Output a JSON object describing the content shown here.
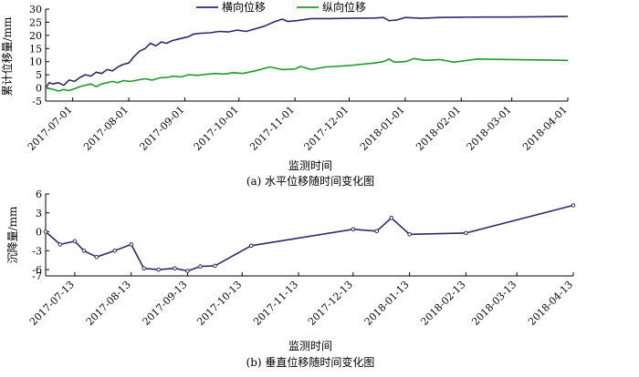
{
  "chart_data": [
    {
      "type": "line",
      "caption": "(a) 水平位移随时间变化图",
      "xlabel": "监测时间",
      "ylabel": "累计位移量/mm",
      "ylim": [
        -5,
        30
      ],
      "yticks": [
        -5,
        0,
        5,
        10,
        15,
        20,
        25,
        30
      ],
      "x_range": [
        "2017-06-16",
        "2018-04-01"
      ],
      "xticks": [
        "2017-07-01",
        "2017-08-01",
        "2017-09-01",
        "2017-10-01",
        "2017-11-01",
        "2017-12-01",
        "2018-01-01",
        "2018-02-01",
        "2018-03-01",
        "2018-04-01"
      ],
      "legend_position": "top-center",
      "grid": false,
      "series": [
        {
          "name": "横向位移",
          "color": "#2e2a6e",
          "points": [
            [
              "2017-06-16",
              0
            ],
            [
              "2017-06-18",
              2
            ],
            [
              "2017-06-20",
              1.5
            ],
            [
              "2017-06-23",
              2
            ],
            [
              "2017-06-26",
              1
            ],
            [
              "2017-06-29",
              3
            ],
            [
              "2017-07-02",
              2.5
            ],
            [
              "2017-07-05",
              4
            ],
            [
              "2017-07-08",
              5
            ],
            [
              "2017-07-11",
              4.5
            ],
            [
              "2017-07-14",
              6
            ],
            [
              "2017-07-17",
              5.5
            ],
            [
              "2017-07-20",
              7
            ],
            [
              "2017-07-23",
              6.5
            ],
            [
              "2017-07-26",
              8
            ],
            [
              "2017-07-29",
              9
            ],
            [
              "2017-08-01",
              9.5
            ],
            [
              "2017-08-04",
              12
            ],
            [
              "2017-08-07",
              14
            ],
            [
              "2017-08-10",
              15
            ],
            [
              "2017-08-13",
              17
            ],
            [
              "2017-08-16",
              16
            ],
            [
              "2017-08-19",
              17.5
            ],
            [
              "2017-08-22",
              17
            ],
            [
              "2017-08-25",
              18
            ],
            [
              "2017-08-28",
              18.5
            ],
            [
              "2017-08-31",
              19
            ],
            [
              "2017-09-03",
              19.5
            ],
            [
              "2017-09-06",
              20.5
            ],
            [
              "2017-09-10",
              20.8
            ],
            [
              "2017-09-15",
              21
            ],
            [
              "2017-09-20",
              21.5
            ],
            [
              "2017-09-25",
              21.3
            ],
            [
              "2017-09-30",
              22
            ],
            [
              "2017-10-05",
              21.5
            ],
            [
              "2017-10-10",
              22.5
            ],
            [
              "2017-10-15",
              23.5
            ],
            [
              "2017-10-20",
              25
            ],
            [
              "2017-10-25",
              26.2
            ],
            [
              "2017-10-28",
              25.3
            ],
            [
              "2017-11-02",
              25.6
            ],
            [
              "2017-11-10",
              26.4
            ],
            [
              "2017-11-20",
              26.4
            ],
            [
              "2017-12-01",
              26.5
            ],
            [
              "2017-12-15",
              26.6
            ],
            [
              "2017-12-20",
              26.8
            ],
            [
              "2017-12-23",
              25.6
            ],
            [
              "2017-12-27",
              25.8
            ],
            [
              "2018-01-01",
              26.8
            ],
            [
              "2018-01-10",
              26.5
            ],
            [
              "2018-01-20",
              26.8
            ],
            [
              "2018-02-01",
              26.9
            ],
            [
              "2018-02-15",
              27
            ],
            [
              "2018-03-01",
              27
            ],
            [
              "2018-04-01",
              27.2
            ]
          ]
        },
        {
          "name": "纵向位移",
          "color": "#1e9a2a",
          "points": [
            [
              "2017-06-16",
              0
            ],
            [
              "2017-06-20",
              -0.5
            ],
            [
              "2017-06-23",
              -1.2
            ],
            [
              "2017-06-26",
              -0.6
            ],
            [
              "2017-06-29",
              -1
            ],
            [
              "2017-07-02",
              -0.3
            ],
            [
              "2017-07-05",
              0.5
            ],
            [
              "2017-07-08",
              1
            ],
            [
              "2017-07-11",
              1.5
            ],
            [
              "2017-07-14",
              0.5
            ],
            [
              "2017-07-17",
              1.5
            ],
            [
              "2017-07-20",
              2
            ],
            [
              "2017-07-23",
              2.5
            ],
            [
              "2017-07-26",
              2
            ],
            [
              "2017-07-29",
              2.8
            ],
            [
              "2017-08-02",
              2.5
            ],
            [
              "2017-08-06",
              3
            ],
            [
              "2017-08-10",
              3.5
            ],
            [
              "2017-08-14",
              3
            ],
            [
              "2017-08-18",
              3.8
            ],
            [
              "2017-08-22",
              4
            ],
            [
              "2017-08-26",
              4.5
            ],
            [
              "2017-08-30",
              4.2
            ],
            [
              "2017-09-03",
              5
            ],
            [
              "2017-09-08",
              4.8
            ],
            [
              "2017-09-13",
              5.2
            ],
            [
              "2017-09-18",
              5.5
            ],
            [
              "2017-09-23",
              5.3
            ],
            [
              "2017-09-28",
              5.8
            ],
            [
              "2017-10-03",
              5.5
            ],
            [
              "2017-10-10",
              6.5
            ],
            [
              "2017-10-18",
              8
            ],
            [
              "2017-10-25",
              7
            ],
            [
              "2017-11-01",
              7.2
            ],
            [
              "2017-11-04",
              8.2
            ],
            [
              "2017-11-10",
              7
            ],
            [
              "2017-11-18",
              8
            ],
            [
              "2017-12-01",
              8.5
            ],
            [
              "2017-12-15",
              9.5
            ],
            [
              "2017-12-20",
              10
            ],
            [
              "2017-12-23",
              11
            ],
            [
              "2017-12-26",
              9.8
            ],
            [
              "2018-01-01",
              10
            ],
            [
              "2018-01-06",
              11.2
            ],
            [
              "2018-01-12",
              10.5
            ],
            [
              "2018-01-20",
              10.8
            ],
            [
              "2018-01-28",
              9.8
            ],
            [
              "2018-02-10",
              11
            ],
            [
              "2018-03-01",
              10.8
            ],
            [
              "2018-04-01",
              10.5
            ]
          ]
        }
      ]
    },
    {
      "type": "line",
      "caption": "(b) 垂直位移随时间变化图",
      "xlabel": "监测时间",
      "ylabel": "沉降量/mm",
      "ylim": [
        -7,
        6
      ],
      "yticks": [
        6,
        3,
        0,
        -3,
        -6,
        -7
      ],
      "x_range": [
        "2017-06-27",
        "2018-04-13"
      ],
      "xticks": [
        "2017-07-13",
        "2017-08-13",
        "2017-09-13",
        "2017-10-13",
        "2017-11-13",
        "2017-12-13",
        "2018-01-13",
        "2018-02-13",
        "2018-03-13",
        "2018-04-13"
      ],
      "grid": false,
      "series": [
        {
          "name": "",
          "color": "#2e2a6e",
          "points": [
            [
              "2017-06-27",
              0
            ],
            [
              "2017-07-05",
              -2
            ],
            [
              "2017-07-13",
              -1.5
            ],
            [
              "2017-07-18",
              -3
            ],
            [
              "2017-07-25",
              -4
            ],
            [
              "2017-08-04",
              -3
            ],
            [
              "2017-08-13",
              -2
            ],
            [
              "2017-08-20",
              -5.8
            ],
            [
              "2017-08-28",
              -6
            ],
            [
              "2017-09-06",
              -5.8
            ],
            [
              "2017-09-13",
              -6.2
            ],
            [
              "2017-09-20",
              -5.5
            ],
            [
              "2017-09-28",
              -5.4
            ],
            [
              "2017-10-18",
              -2.2
            ],
            [
              "2017-12-13",
              0.4
            ],
            [
              "2017-12-26",
              0.1
            ],
            [
              "2018-01-03",
              2.2
            ],
            [
              "2018-01-13",
              -0.4
            ],
            [
              "2018-02-13",
              -0.2
            ],
            [
              "2018-04-13",
              4.2
            ]
          ]
        }
      ]
    }
  ]
}
